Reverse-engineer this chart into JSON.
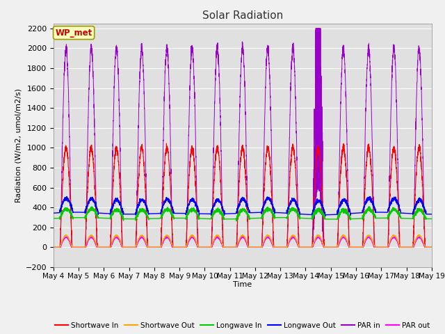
{
  "title": "Solar Radiation",
  "ylabel": "Radiation (W/m2, umol/m2/s)",
  "xlabel": "Time",
  "ylim": [
    -200,
    2250
  ],
  "yticks": [
    -200,
    0,
    200,
    400,
    600,
    800,
    1000,
    1200,
    1400,
    1600,
    1800,
    2000,
    2200
  ],
  "start_day": 4,
  "end_day": 19,
  "num_days": 15,
  "points_per_day": 288,
  "shortwave_in_peak": 1000,
  "shortwave_out_peak": 120,
  "longwave_in_base": 290,
  "longwave_in_peak": 380,
  "longwave_out_base": 340,
  "longwave_out_peak": 480,
  "par_in_peak": 2000,
  "par_out_peak": 100,
  "colors": {
    "shortwave_in": "#ff0000",
    "shortwave_out": "#ffa500",
    "longwave_in": "#00cc00",
    "longwave_out": "#0000ff",
    "par_in": "#9900cc",
    "par_out": "#ff00ff"
  },
  "legend_labels": [
    "Shortwave In",
    "Shortwave Out",
    "Longwave In",
    "Longwave Out",
    "PAR in",
    "PAR out"
  ],
  "station_label": "WP_met",
  "plot_bg": "#e0e0e0",
  "fig_bg": "#f0f0f0",
  "grid_color": "#ffffff"
}
